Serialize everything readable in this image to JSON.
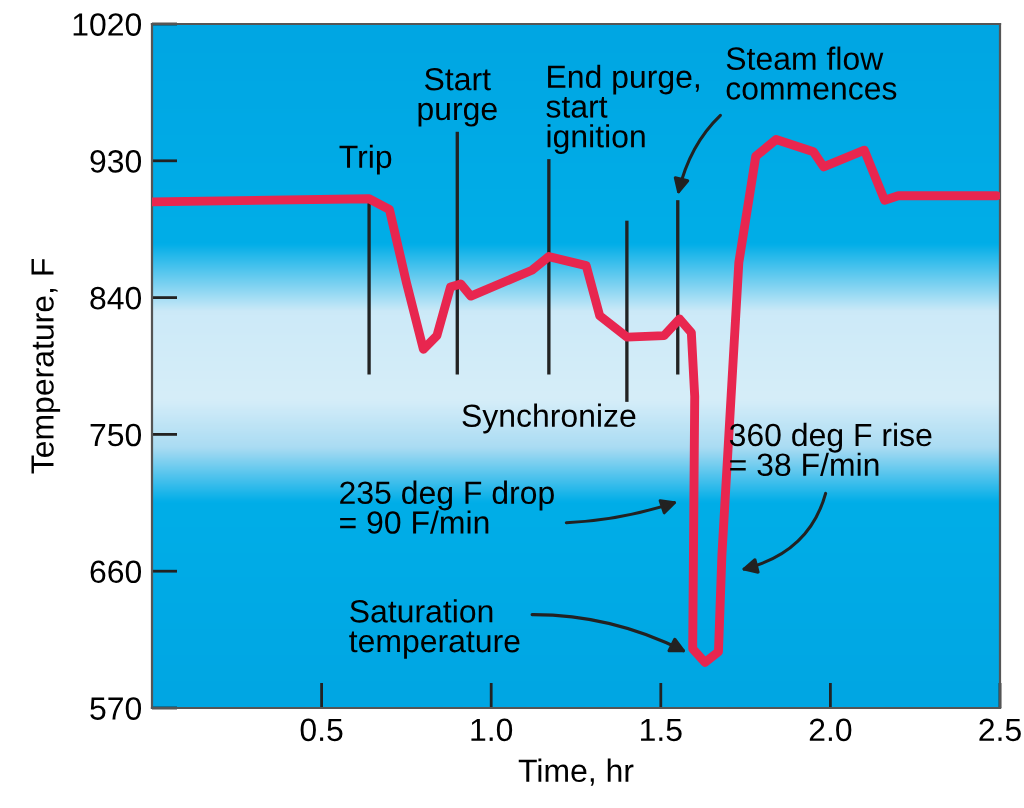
{
  "chart_data": {
    "type": "line",
    "xlabel": "Time, hr",
    "ylabel": "Temperature, F",
    "x": [
      0,
      0.64,
      0.7,
      0.75,
      0.8,
      0.84,
      0.88,
      0.91,
      0.94,
      1.12,
      1.17,
      1.28,
      1.32,
      1.4,
      1.51,
      1.555,
      1.59,
      1.6,
      1.594,
      1.63,
      1.67,
      1.68,
      1.73,
      1.78,
      1.84,
      1.95,
      1.98,
      2.1,
      2.16,
      2.2,
      2.49
    ],
    "series": [
      {
        "color": "#e8264f",
        "values": [
          903,
          905,
          898,
          850,
          806,
          815,
          847,
          849,
          841,
          858,
          867,
          861,
          828,
          814,
          815,
          826,
          817,
          775,
          609,
          600,
          607,
          670,
          863,
          933,
          944,
          936,
          926,
          937,
          904,
          907,
          907
        ]
      }
    ],
    "xlim": [
      0,
      2.5
    ],
    "ylim": [
      570,
      1020
    ],
    "xticks": [
      0.5,
      {
        "value": 1.0,
        "label": "1.0"
      },
      1.5,
      {
        "value": 2.0,
        "label": "2.0"
      },
      2.5
    ],
    "yticks": [
      570,
      660,
      750,
      840,
      930,
      1020
    ],
    "grid": false,
    "marker": "none",
    "line_style": "solid",
    "ref_lines": [
      {
        "axis": "x",
        "value": 0.64,
        "label": "Trip"
      },
      {
        "axis": "x",
        "value": 0.9,
        "label": "Start\npurge"
      },
      {
        "axis": "x",
        "value": 1.17,
        "label": "End purge,\nstart\nignition"
      },
      {
        "axis": "x",
        "value": 1.4,
        "label": "Synchronize"
      },
      {
        "axis": "x",
        "value": 1.55,
        "label": "Steam flow\ncommences"
      }
    ],
    "annotations": [
      {
        "text": "235 deg F drop\n= 90 F/min",
        "x": 1.565,
        "y": 707
      },
      {
        "text": "360 deg F rise\n= 38 F/min",
        "x": 1.72,
        "y": 660
      },
      {
        "text": "Saturation\ntemperature",
        "x": 1.59,
        "y": 605
      }
    ]
  }
}
